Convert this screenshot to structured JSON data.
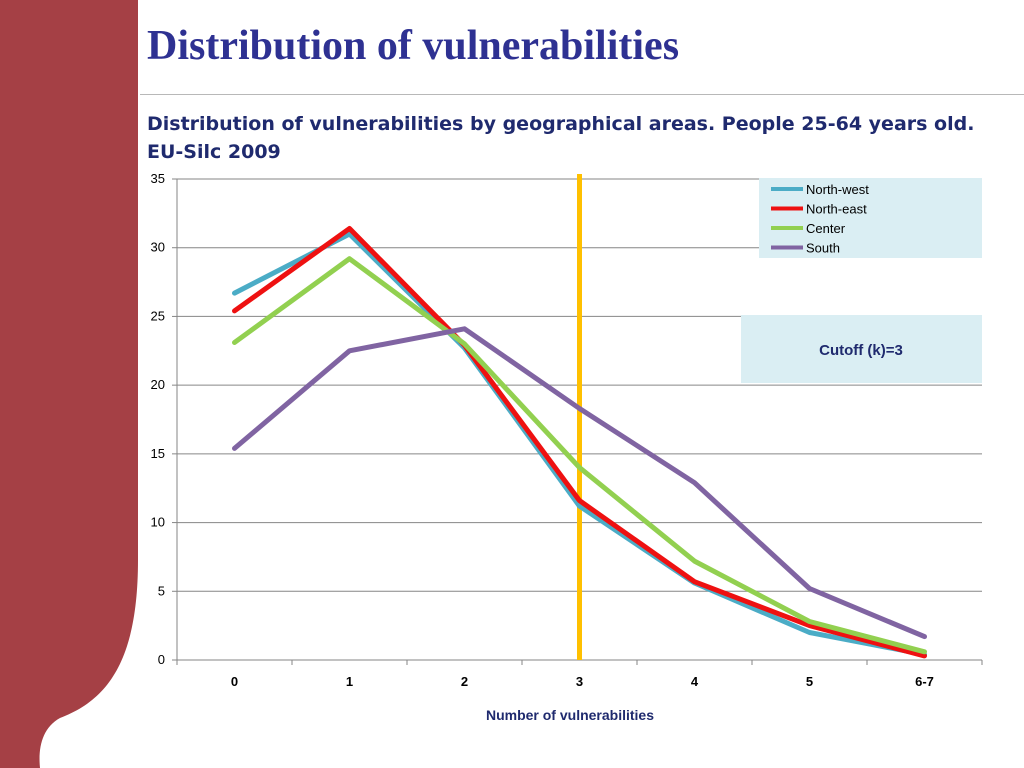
{
  "slide": {
    "title": "Distribution of vulnerabilities",
    "colors": {
      "sidebar": "#a54045",
      "title": "#2e3192",
      "subtitle": "#1f2a6e"
    }
  },
  "chart_data": {
    "type": "line",
    "title": "Distribution of vulnerabilities by geographical areas. People 25-64 years old. EU-Silc 2009",
    "xlabel": "Number of vulnerabilities",
    "ylabel": "",
    "categories": [
      "0",
      "1",
      "2",
      "3",
      "4",
      "5",
      "6-7"
    ],
    "ylim": [
      0,
      35
    ],
    "yticks": [
      0,
      5,
      10,
      15,
      20,
      25,
      30,
      35
    ],
    "grid": true,
    "legend_position": "top-right",
    "series": [
      {
        "name": "North-west",
        "color": "#4bacc6",
        "values": [
          26.7,
          31.0,
          22.7,
          11.2,
          5.6,
          2.0,
          0.4
        ]
      },
      {
        "name": "North-east",
        "color": "#ee1111",
        "values": [
          25.4,
          31.4,
          22.9,
          11.6,
          5.7,
          2.5,
          0.3
        ]
      },
      {
        "name": "Center",
        "color": "#92d050",
        "values": [
          23.1,
          29.2,
          23.0,
          14.0,
          7.2,
          2.8,
          0.6
        ]
      },
      {
        "name": "South",
        "color": "#8064a2",
        "values": [
          15.4,
          22.5,
          24.1,
          18.3,
          12.9,
          5.2,
          1.7
        ]
      }
    ],
    "cutoff": {
      "x": 3,
      "label": "Cutoff (k)=3",
      "color": "#ffc000"
    },
    "annotation_box_color": "#daeef3"
  }
}
